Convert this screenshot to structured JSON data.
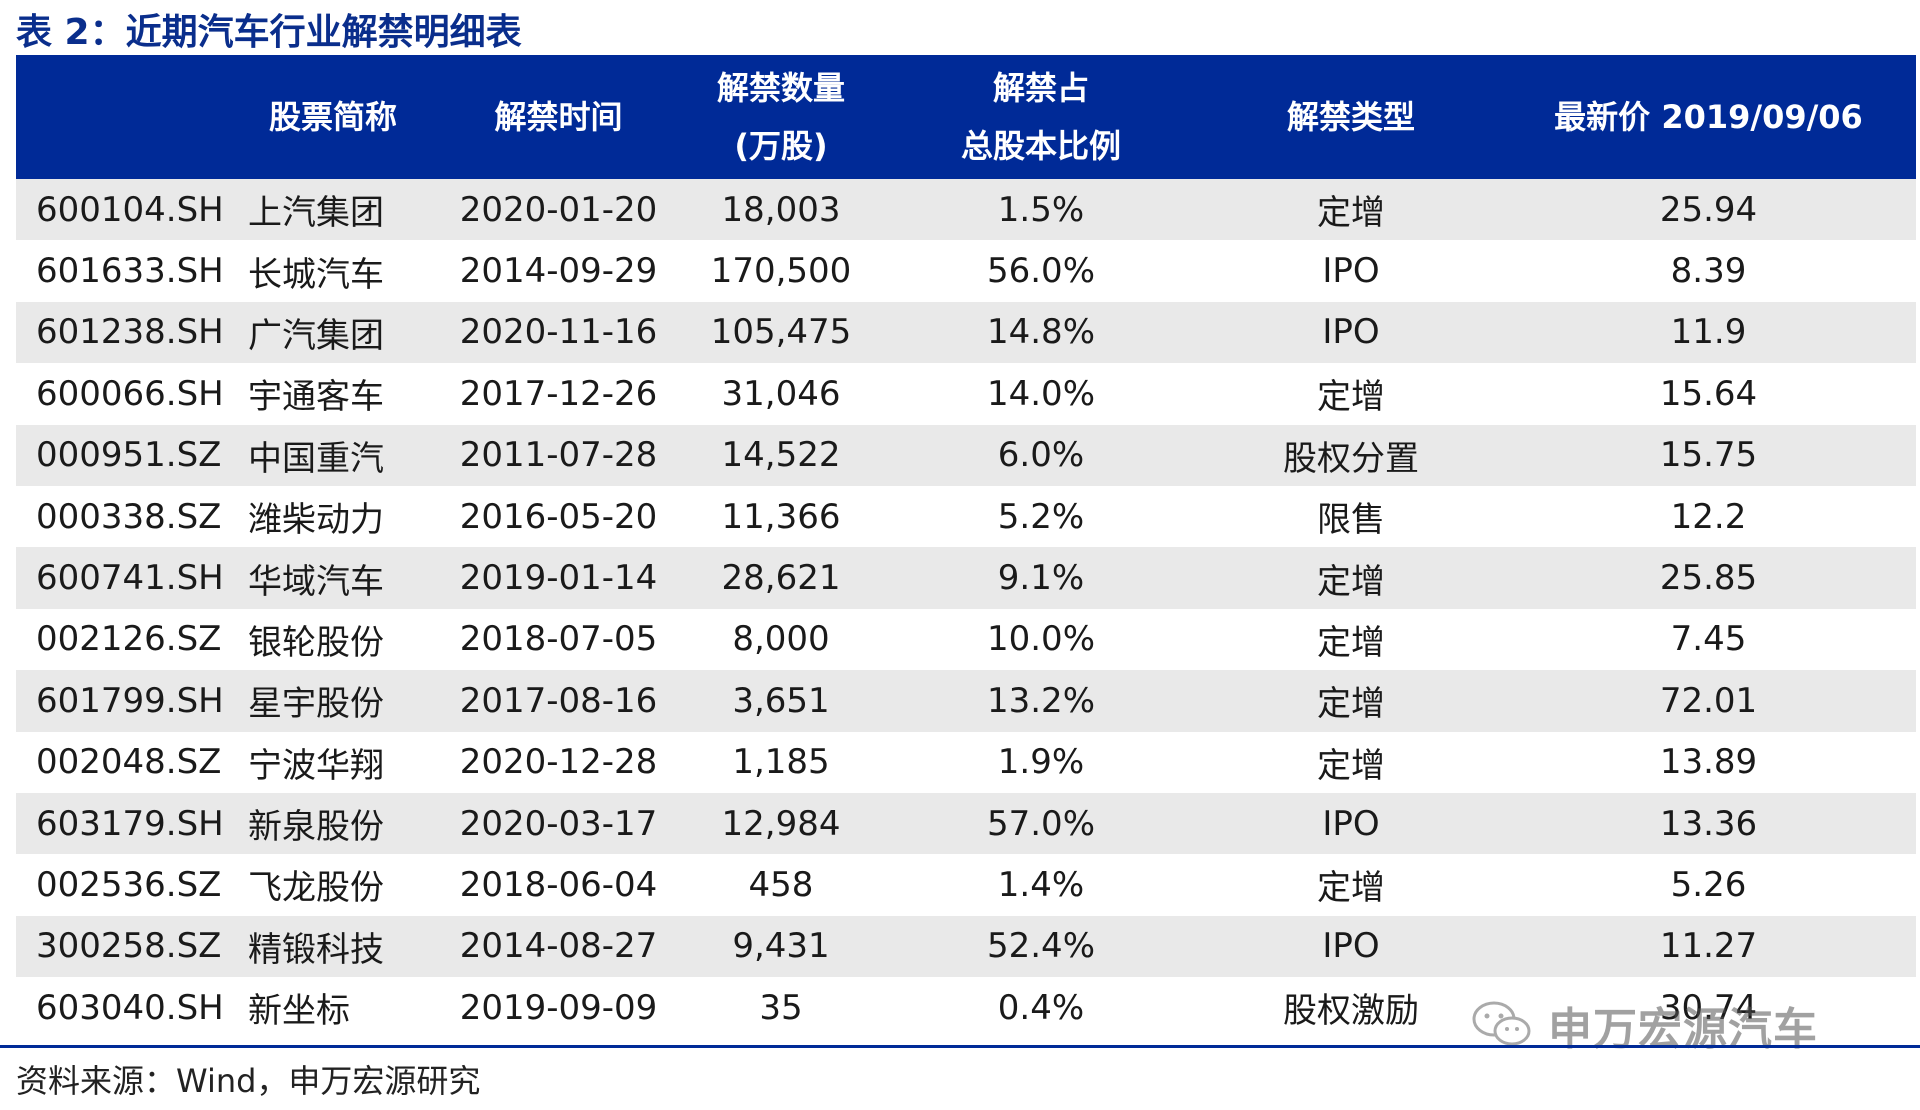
{
  "title": "表 2：近期汽车行业解禁明细表",
  "headers": {
    "code": "",
    "name": "股票简称",
    "date": "解禁时间",
    "qty_line1": "解禁数量",
    "qty_line2": "(万股)",
    "pct_line1": "解禁占",
    "pct_line2": "总股本比例",
    "type": "解禁类型",
    "price": "最新价 2019/09/06"
  },
  "rows": [
    {
      "code": "600104.SH",
      "name": "上汽集团",
      "date": "2020-01-20",
      "qty": "18,003",
      "pct": "1.5%",
      "type": "定增",
      "price": "25.94"
    },
    {
      "code": "601633.SH",
      "name": "长城汽车",
      "date": "2014-09-29",
      "qty": "170,500",
      "pct": "56.0%",
      "type": "IPO",
      "price": "8.39"
    },
    {
      "code": "601238.SH",
      "name": "广汽集团",
      "date": "2020-11-16",
      "qty": "105,475",
      "pct": "14.8%",
      "type": "IPO",
      "price": "11.9"
    },
    {
      "code": "600066.SH",
      "name": "宇通客车",
      "date": "2017-12-26",
      "qty": "31,046",
      "pct": "14.0%",
      "type": "定增",
      "price": "15.64"
    },
    {
      "code": "000951.SZ",
      "name": "中国重汽",
      "date": "2011-07-28",
      "qty": "14,522",
      "pct": "6.0%",
      "type": "股权分置",
      "price": "15.75"
    },
    {
      "code": "000338.SZ",
      "name": "潍柴动力",
      "date": "2016-05-20",
      "qty": "11,366",
      "pct": "5.2%",
      "type": "限售",
      "price": "12.2"
    },
    {
      "code": "600741.SH",
      "name": "华域汽车",
      "date": "2019-01-14",
      "qty": "28,621",
      "pct": "9.1%",
      "type": "定增",
      "price": "25.85"
    },
    {
      "code": "002126.SZ",
      "name": "银轮股份",
      "date": "2018-07-05",
      "qty": "8,000",
      "pct": "10.0%",
      "type": "定增",
      "price": "7.45"
    },
    {
      "code": "601799.SH",
      "name": "星宇股份",
      "date": "2017-08-16",
      "qty": "3,651",
      "pct": "13.2%",
      "type": "定增",
      "price": "72.01"
    },
    {
      "code": "002048.SZ",
      "name": "宁波华翔",
      "date": "2020-12-28",
      "qty": "1,185",
      "pct": "1.9%",
      "type": "定增",
      "price": "13.89"
    },
    {
      "code": "603179.SH",
      "name": "新泉股份",
      "date": "2020-03-17",
      "qty": "12,984",
      "pct": "57.0%",
      "type": "IPO",
      "price": "13.36"
    },
    {
      "code": "002536.SZ",
      "name": "飞龙股份",
      "date": "2018-06-04",
      "qty": "458",
      "pct": "1.4%",
      "type": "定增",
      "price": "5.26"
    },
    {
      "code": "300258.SZ",
      "name": "精锻科技",
      "date": "2014-08-27",
      "qty": "9,431",
      "pct": "52.4%",
      "type": "IPO",
      "price": "11.27"
    },
    {
      "code": "603040.SH",
      "name": "新坐标",
      "date": "2019-09-09",
      "qty": "35",
      "pct": "0.4%",
      "type": "股权激励",
      "price": "30.74"
    }
  ],
  "source": "资料来源：Wind，申万宏源研究",
  "watermark": "申万宏源汽车",
  "colors": {
    "header_bg": "#002a97",
    "title": "#0a2e8c",
    "row_alt": "#e9e9e9"
  }
}
